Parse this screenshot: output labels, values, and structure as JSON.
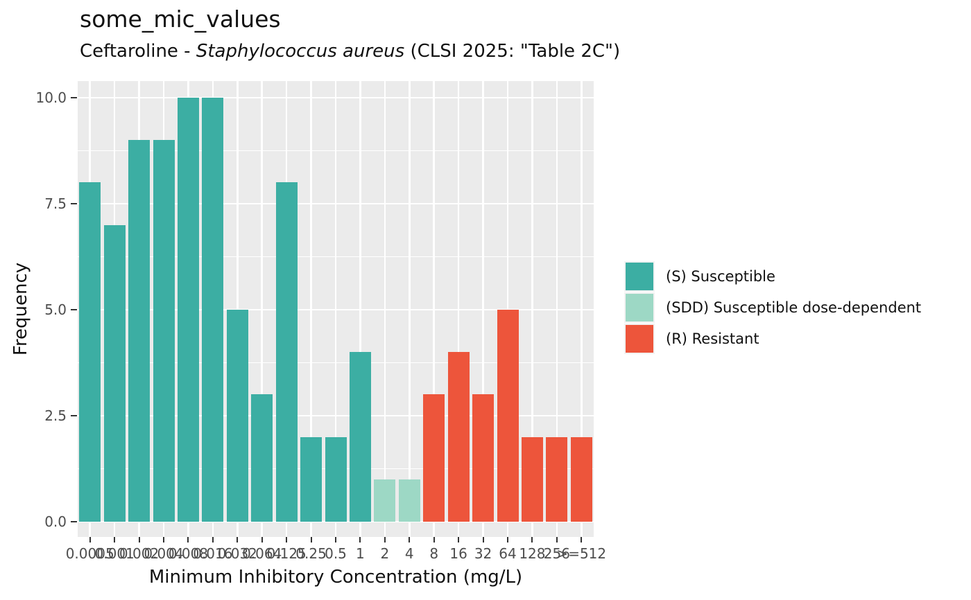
{
  "chart_data": {
    "type": "bar",
    "title": "some_mic_values",
    "subtitle_parts": {
      "prefix": "Ceftaroline - ",
      "organism": "Staphylococcus aureus",
      "suffix": " (CLSI 2025: \"Table 2C\")"
    },
    "xlabel": "Minimum Inhibitory Concentration (mg/L)",
    "ylabel": "Frequency",
    "categories": [
      "0.0005",
      "0.001",
      "0.002",
      "0.004",
      "0.008",
      "0.016",
      "0.032",
      "0.064",
      "0.125",
      "0.25",
      "0.5",
      "1",
      "2",
      "4",
      "8",
      "16",
      "32",
      "64",
      "128",
      "256",
      ">=512"
    ],
    "values": [
      8,
      7,
      9,
      9,
      10,
      10,
      5,
      3,
      8,
      2,
      2,
      4,
      1,
      1,
      3,
      4,
      3,
      5,
      2,
      2,
      2
    ],
    "groups": [
      "S",
      "S",
      "S",
      "S",
      "S",
      "S",
      "S",
      "S",
      "S",
      "S",
      "S",
      "S",
      "SDD",
      "SDD",
      "R",
      "R",
      "R",
      "R",
      "R",
      "R",
      "R"
    ],
    "group_colors": {
      "S": "#3CAEA3",
      "SDD": "#9DD8C5",
      "R": "#ED553B"
    },
    "y_axis": {
      "range": [
        0,
        10
      ],
      "ticks": [
        {
          "value": 0,
          "label": "0.0"
        },
        {
          "value": 2.5,
          "label": "2.5"
        },
        {
          "value": 5,
          "label": "5.0"
        },
        {
          "value": 7.5,
          "label": "7.5"
        },
        {
          "value": 10,
          "label": "10.0"
        }
      ],
      "minor_ticks": [
        1.25,
        3.75,
        6.25,
        8.75
      ]
    },
    "legend": {
      "position": "right",
      "items": [
        {
          "group": "S",
          "label": "(S) Susceptible"
        },
        {
          "group": "SDD",
          "label": "(SDD) Susceptible dose-dependent"
        },
        {
          "group": "R",
          "label": "(R) Resistant"
        }
      ]
    },
    "panel_background": "#EBEBEB",
    "gridline_color": "#FFFFFF",
    "grid": true
  }
}
